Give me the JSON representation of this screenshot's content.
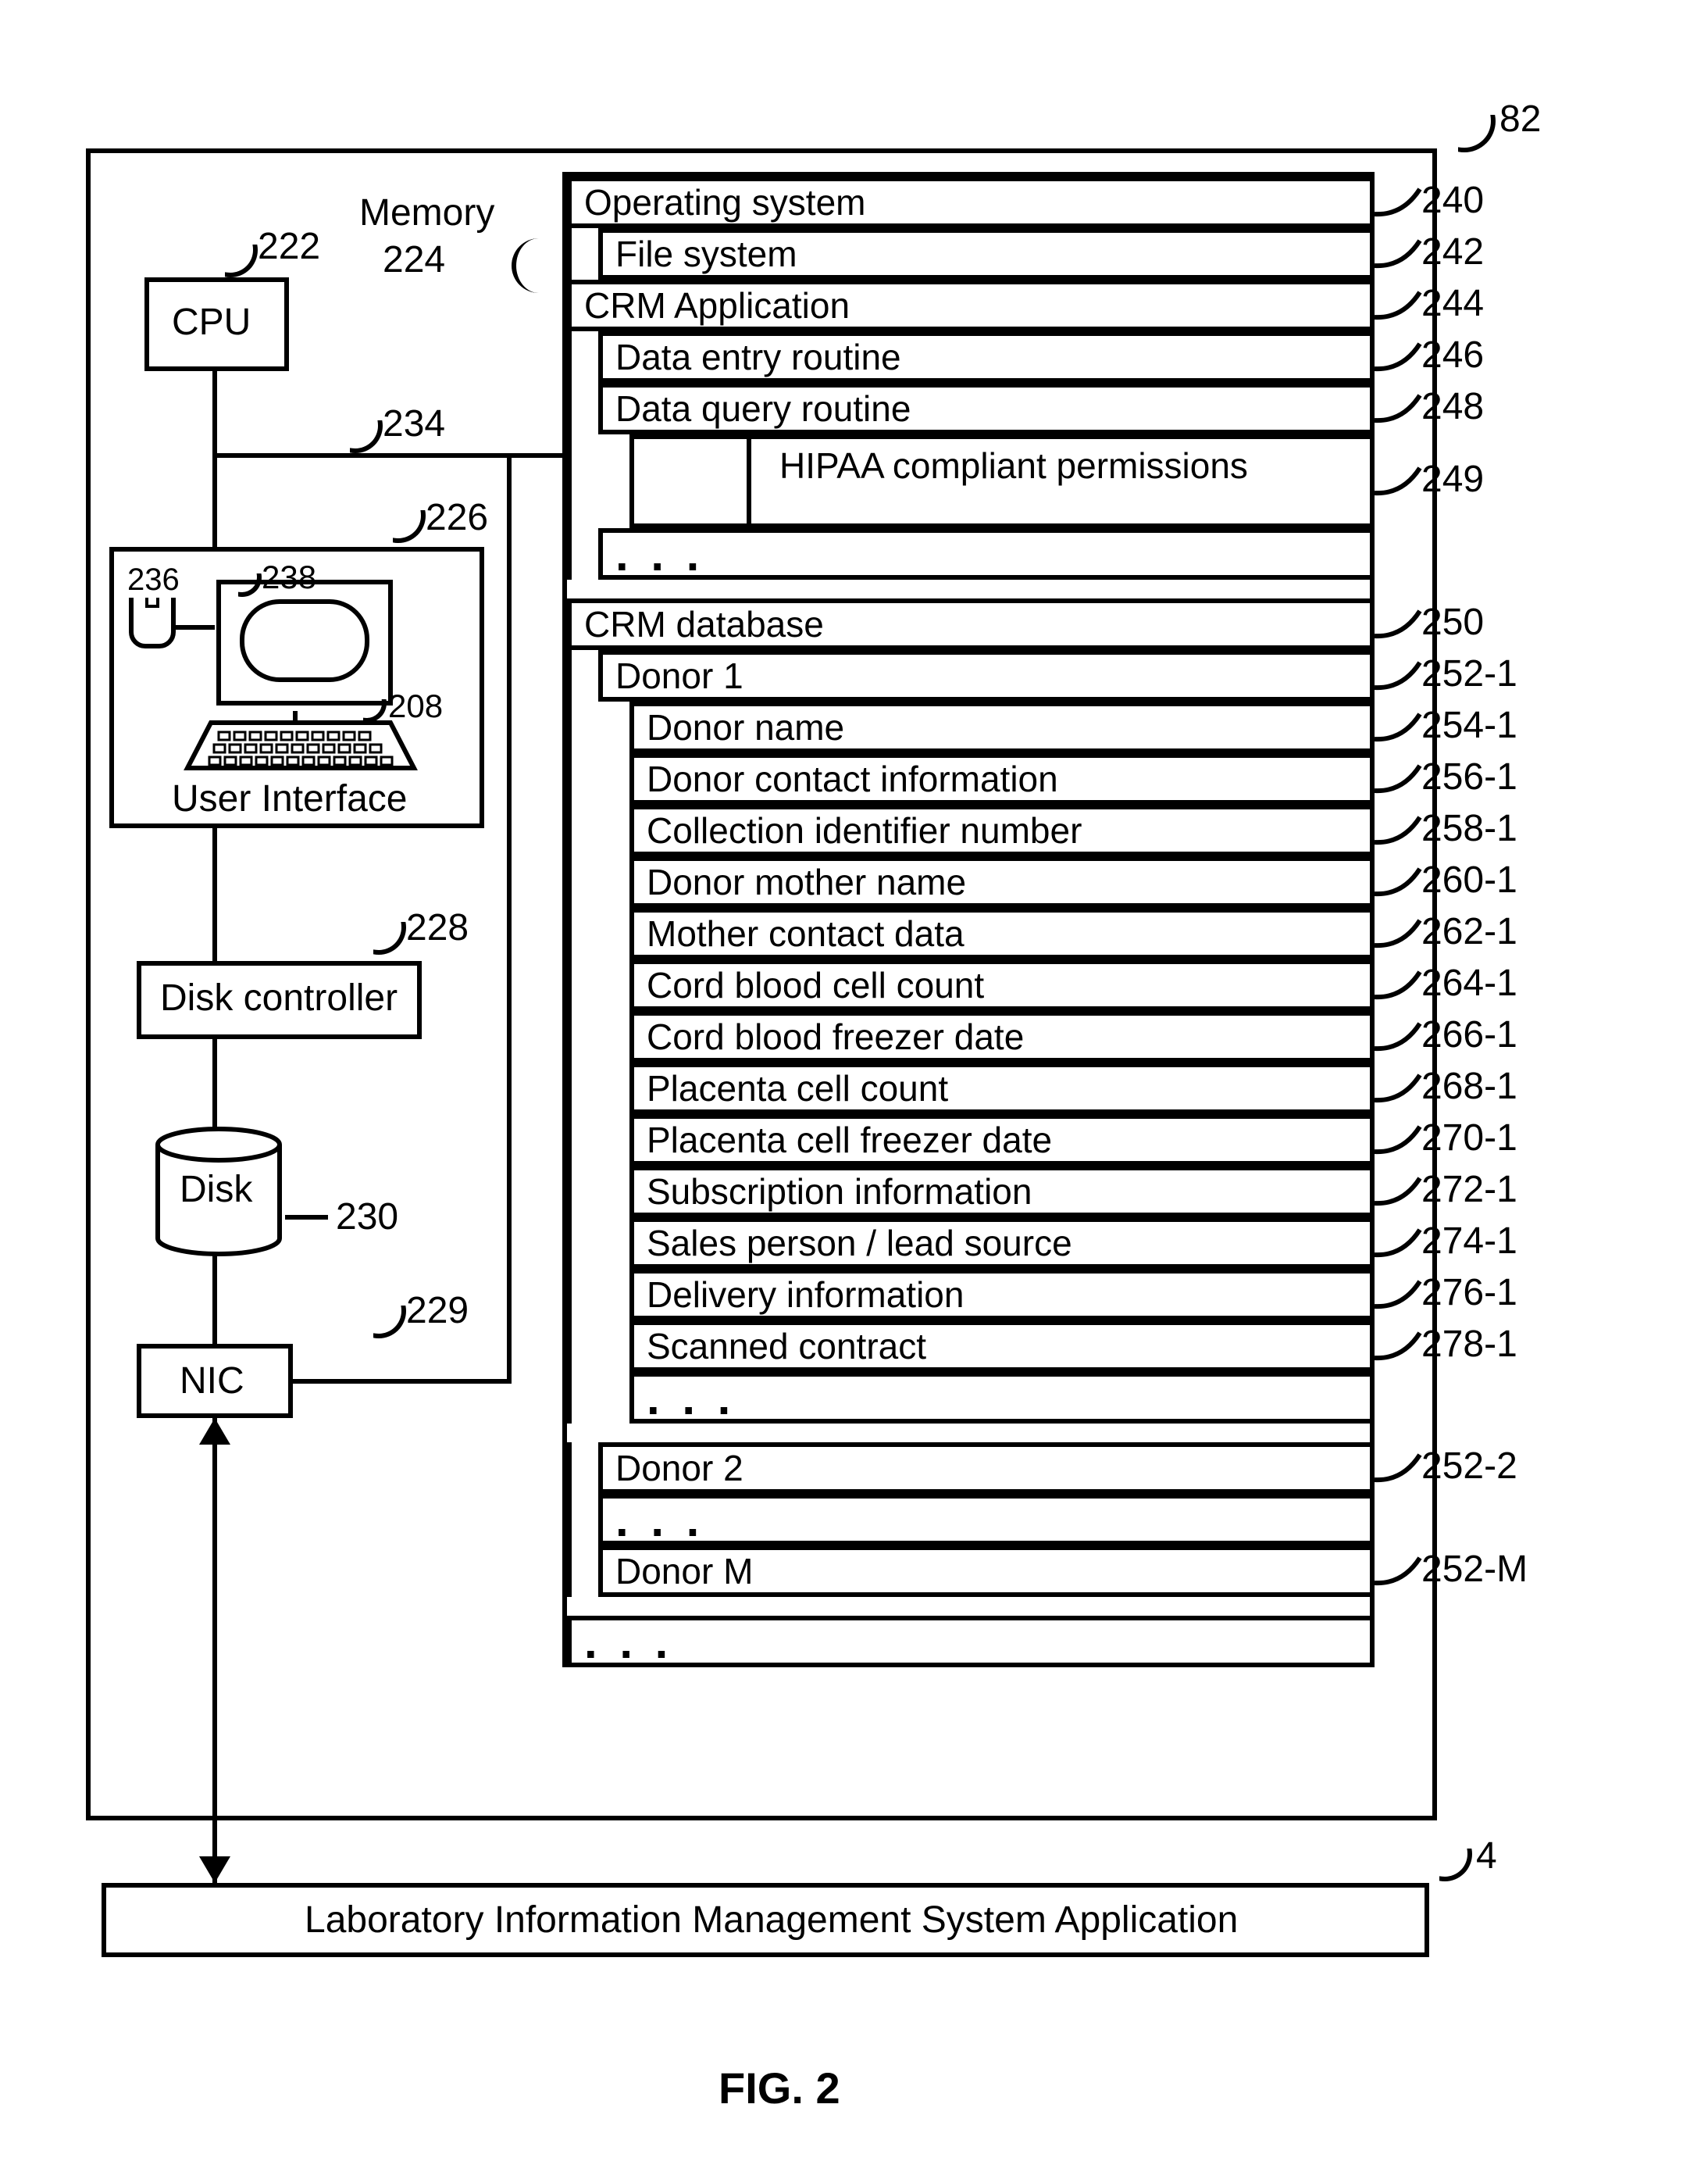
{
  "diagram": {
    "type": "block-diagram",
    "figure_label": "FIG. 2",
    "outer_system_ref": "82",
    "external_block": {
      "text": "Laboratory Information Management System Application",
      "ref": "4"
    },
    "components": {
      "cpu": {
        "label": "CPU",
        "ref": "222"
      },
      "memory": {
        "label": "Memory",
        "ref": "224"
      },
      "bus": {
        "ref": "234"
      },
      "ui_group": {
        "label": "User Interface",
        "ref": "226"
      },
      "mouse": {
        "ref": "236"
      },
      "monitor": {
        "ref": "238"
      },
      "keyboard": {
        "ref": "208"
      },
      "disk_ctrl": {
        "label": "Disk controller",
        "ref": "228"
      },
      "disk": {
        "label": "Disk",
        "ref": "230"
      },
      "nic": {
        "label": "NIC",
        "ref": "229"
      }
    },
    "memory_items": [
      {
        "text": "Operating system",
        "indent": 0,
        "ref": "240"
      },
      {
        "text": "File system",
        "indent": 1,
        "ref": "242"
      },
      {
        "text": "CRM Application",
        "indent": 0,
        "ref": "244"
      },
      {
        "text": "Data entry routine",
        "indent": 1,
        "ref": "246"
      },
      {
        "text": "Data query routine",
        "indent": 1,
        "ref": "248"
      },
      {
        "text": "HIPAA compliant permissions",
        "indent": 2,
        "ref": "249",
        "tall": true
      },
      {
        "text": ". . .",
        "indent": 1,
        "ellipsis": true
      },
      {
        "spacer": true
      },
      {
        "text": "CRM database",
        "indent": 0,
        "ref": "250"
      },
      {
        "text": "Donor 1",
        "indent": 1,
        "ref": "252-1"
      },
      {
        "text": "Donor name",
        "indent": 2,
        "ref": "254-1"
      },
      {
        "text": "Donor contact information",
        "indent": 2,
        "ref": "256-1"
      },
      {
        "text": "Collection identifier number",
        "indent": 2,
        "ref": "258-1"
      },
      {
        "text": "Donor mother name",
        "indent": 2,
        "ref": "260-1"
      },
      {
        "text": "Mother contact data",
        "indent": 2,
        "ref": "262-1"
      },
      {
        "text": "Cord blood cell count",
        "indent": 2,
        "ref": "264-1"
      },
      {
        "text": "Cord blood freezer date",
        "indent": 2,
        "ref": "266-1"
      },
      {
        "text": "Placenta cell count",
        "indent": 2,
        "ref": "268-1"
      },
      {
        "text": "Placenta cell freezer date",
        "indent": 2,
        "ref": "270-1"
      },
      {
        "text": "Subscription information",
        "indent": 2,
        "ref": "272-1"
      },
      {
        "text": "Sales person / lead source",
        "indent": 2,
        "ref": "274-1"
      },
      {
        "text": "Delivery information",
        "indent": 2,
        "ref": "276-1"
      },
      {
        "text": "Scanned contract",
        "indent": 2,
        "ref": "278-1"
      },
      {
        "text": ". . .",
        "indent": 2,
        "ellipsis": true
      },
      {
        "spacer": true
      },
      {
        "text": "Donor 2",
        "indent": 1,
        "ref": "252-2"
      },
      {
        "text": ". . .",
        "indent": 1,
        "ellipsis": true
      },
      {
        "text": "Donor M",
        "indent": 1,
        "ref": "252-M"
      },
      {
        "spacer": true
      },
      {
        "text": ". . .",
        "indent": 0,
        "ellipsis": true
      }
    ],
    "colors": {
      "stroke": "#000000",
      "bg": "#ffffff"
    },
    "stroke_width": 6,
    "font_size": 48
  }
}
